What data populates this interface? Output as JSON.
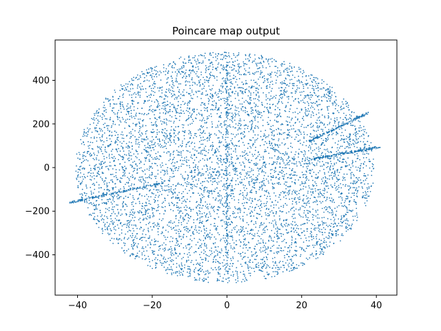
{
  "chart_data": {
    "type": "scatter",
    "title": "Poincare map output",
    "xlabel": "",
    "ylabel": "",
    "xlim": [
      -46,
      45.5
    ],
    "ylim": [
      -585,
      585
    ],
    "x_ticks": [
      -40,
      -20,
      0,
      20,
      40
    ],
    "x_tick_labels": [
      "−40",
      "−20",
      "0",
      "20",
      "40"
    ],
    "y_ticks": [
      -400,
      -200,
      0,
      200,
      400
    ],
    "y_tick_labels": [
      "−400",
      "−200",
      "0",
      "200",
      "400"
    ],
    "grid": false,
    "legend": "none",
    "marker_color": "#1f77b4",
    "series": [
      {
        "description_points": "ellipse-filled",
        "region": {
          "x_center": -0.5,
          "y_center": 0,
          "x_radius": 40,
          "y_radius": 530
        },
        "approx_point_count": 6500
      },
      {
        "description_points": "line-left",
        "from": [
          -42,
          -160
        ],
        "to": [
          -17,
          -70
        ]
      },
      {
        "description_points": "line-right-upper",
        "from": [
          22,
          120
        ],
        "to": [
          38,
          252
        ]
      },
      {
        "description_points": "line-right-lower",
        "from": [
          23,
          40
        ],
        "to": [
          41,
          95
        ]
      },
      {
        "description_points": "line-vertical",
        "from": [
          0,
          -530
        ],
        "to": [
          0,
          530
        ]
      }
    ]
  }
}
